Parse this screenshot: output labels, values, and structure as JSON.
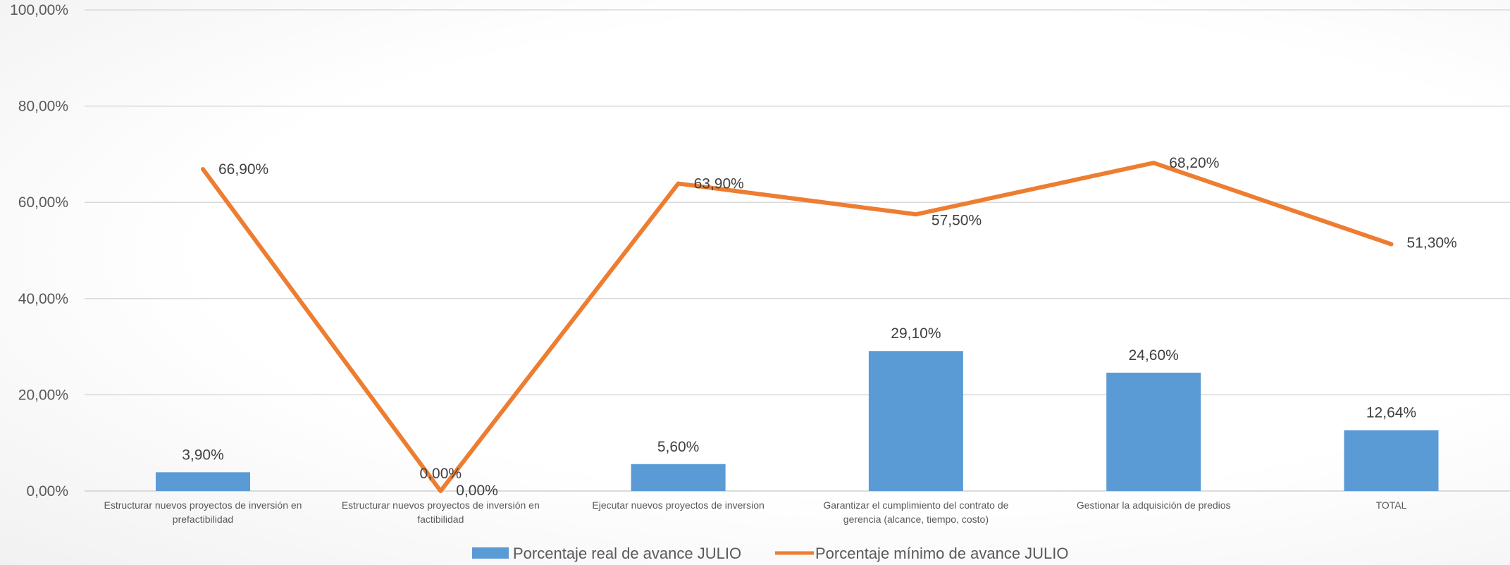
{
  "chart_data": {
    "type": "bar",
    "categories": [
      [
        "Estructurar nuevos proyectos de inversión en",
        "prefactibilidad"
      ],
      [
        "Estructurar nuevos proyectos de inversión en",
        "factibilidad"
      ],
      [
        "Ejecutar nuevos proyectos de inversion"
      ],
      [
        "Garantizar el cumplimiento del contrato de",
        "gerencia (alcance, tiempo, costo)"
      ],
      [
        "Gestionar la adquisición de predios"
      ],
      [
        "TOTAL"
      ]
    ],
    "series": [
      {
        "name": "Porcentaje real de avance JULIO",
        "type": "bar",
        "color": "#5b9bd5",
        "values": [
          3.9,
          0.0,
          5.6,
          29.1,
          24.6,
          12.64
        ],
        "labels": [
          "3,90%",
          "0,00%",
          "5,60%",
          "29,10%",
          "24,60%",
          "12,64%"
        ]
      },
      {
        "name": "Porcentaje mínimo de avance JULIO",
        "type": "line",
        "color": "#ed7d31",
        "values": [
          66.9,
          0.0,
          63.9,
          57.5,
          68.2,
          51.3
        ],
        "labels": [
          "66,90%",
          "0,00%",
          "63,90%",
          "57,50%",
          "68,20%",
          "51,30%"
        ]
      }
    ],
    "yticks": [
      "0,00%",
      "20,00%",
      "40,00%",
      "60,00%",
      "80,00%",
      "100,00%"
    ],
    "ylim": [
      0,
      100
    ],
    "grid": true,
    "legend": "bottom-center"
  }
}
